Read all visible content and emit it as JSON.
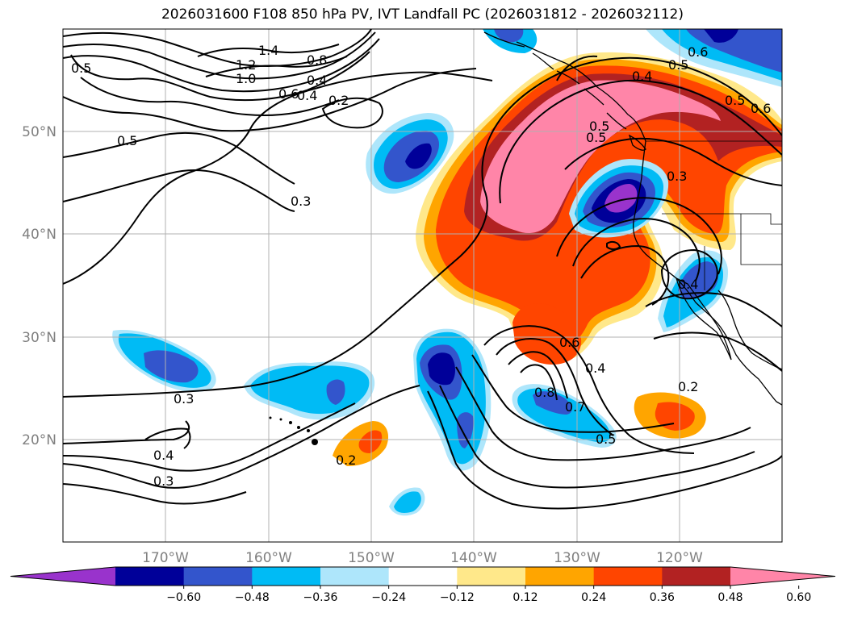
{
  "title": "2026031600 F108 850 hPa PV, IVT Landfall PC (2026031812 - 2026032112)",
  "lat_labels": [
    "50°N",
    "40°N",
    "30°N",
    "20°N"
  ],
  "lon_labels": [
    "170°W",
    "160°W",
    "150°W",
    "140°W",
    "130°W",
    "120°W"
  ],
  "colorbar": {
    "ticks": [
      "−0.60",
      "−0.48",
      "−0.36",
      "−0.24",
      "−0.12",
      "0.12",
      "0.24",
      "0.36",
      "0.48",
      "0.60"
    ],
    "colors": [
      "#9933cc",
      "#000099",
      "#3355cc",
      "#00bbf5",
      "#aee6fb",
      "#ffffff",
      "#ffe88a",
      "#ffa500",
      "#ff4500",
      "#b22222",
      "#ff85a8"
    ],
    "extend": "both"
  },
  "contour_labels": [
    "0.5",
    "1.4",
    "1.2",
    "1.0",
    "0.8",
    "0.6",
    "0.4",
    "0.2",
    "0.5",
    "0.3",
    "0.3",
    "0.4",
    "0.3",
    "0.2",
    "0.4",
    "0.6",
    "0.4",
    "0.8",
    "0.7",
    "0.5",
    "0.2",
    "0.3",
    "0.5",
    "0.4",
    "0.5",
    "0.5",
    "0.6",
    "0.5",
    "0.6",
    "0.4"
  ]
}
